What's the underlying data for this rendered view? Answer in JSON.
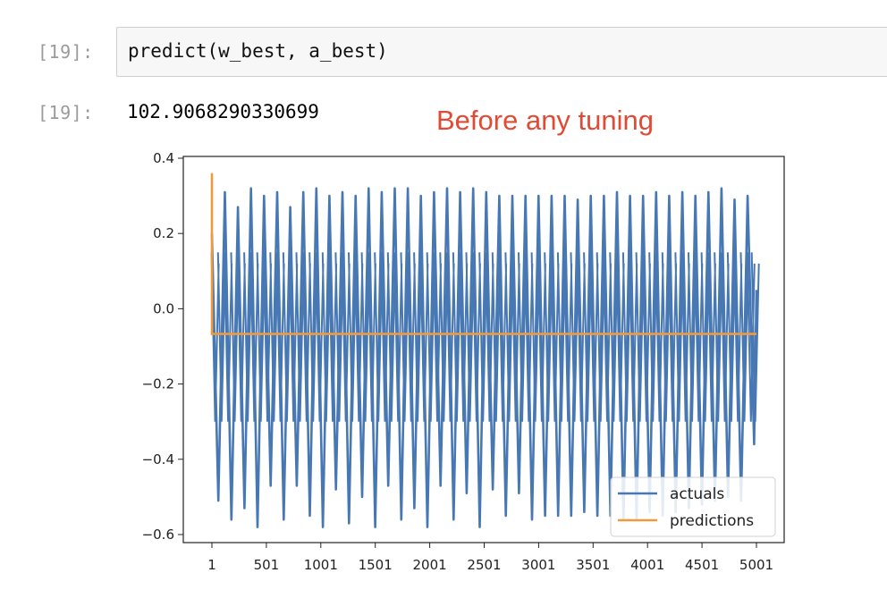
{
  "cells": {
    "input_prompt": "[19]:",
    "input_code": "predict(w_best, a_best)",
    "output_prompt": "[19]:",
    "output_value": "102.9068290330699"
  },
  "annotation": "Before any tuning",
  "colors": {
    "actuals": "#4778b3",
    "predictions": "#ef9a3d",
    "annotation": "#e24a33"
  },
  "chart_data": {
    "type": "line",
    "title": "",
    "xlabel": "",
    "ylabel": "",
    "xlim": [
      1,
      5001
    ],
    "ylim": [
      -0.62,
      0.4
    ],
    "x_ticks": [
      1,
      501,
      1001,
      1501,
      2001,
      2501,
      3001,
      3501,
      4001,
      4501,
      5001
    ],
    "x_tick_labels": [
      "1",
      "501",
      "1001",
      "1501",
      "2001",
      "2501",
      "3001",
      "3501",
      "4001",
      "4501",
      "5001"
    ],
    "y_ticks": [
      0.4,
      0.2,
      0.0,
      -0.2,
      -0.4,
      -0.6
    ],
    "y_tick_labels": [
      "0.4",
      "0.2",
      "0.0",
      "−0.2",
      "−0.4",
      "−0.6"
    ],
    "legend": {
      "position": "lower-right",
      "entries": [
        "actuals",
        "predictions"
      ]
    },
    "series": [
      {
        "name": "actuals",
        "note": "oscillating signal, approx range -0.58 to 0.32",
        "x": [
          1,
          60,
          120,
          180,
          240,
          300,
          360,
          420,
          480,
          540,
          600,
          660,
          720,
          780,
          840,
          900,
          960,
          1020,
          1080,
          1140,
          1200,
          1260,
          1320,
          1380,
          1440,
          1500,
          1560,
          1620,
          1680,
          1740,
          1800,
          1860,
          1920,
          1980,
          2040,
          2100,
          2160,
          2220,
          2280,
          2340,
          2400,
          2460,
          2520,
          2580,
          2640,
          2700,
          2760,
          2820,
          2880,
          2940,
          3000,
          3060,
          3120,
          3180,
          3240,
          3300,
          3360,
          3420,
          3480,
          3540,
          3600,
          3660,
          3720,
          3780,
          3840,
          3900,
          3960,
          4020,
          4080,
          4140,
          4200,
          4260,
          4320,
          4380,
          4440,
          4500,
          4560,
          4620,
          4680,
          4740,
          4800,
          4860,
          4920,
          4980,
          5001
        ],
        "values": [
          0.2,
          -0.51,
          0.31,
          -0.56,
          0.27,
          -0.53,
          0.32,
          -0.58,
          0.3,
          -0.47,
          0.31,
          -0.56,
          0.27,
          -0.47,
          0.31,
          -0.55,
          0.32,
          -0.58,
          0.3,
          -0.48,
          0.31,
          -0.57,
          0.3,
          -0.5,
          0.32,
          -0.58,
          0.31,
          -0.47,
          0.32,
          -0.56,
          0.32,
          -0.53,
          0.3,
          -0.58,
          0.31,
          -0.47,
          0.32,
          -0.56,
          0.31,
          -0.49,
          0.32,
          -0.58,
          0.31,
          -0.48,
          0.3,
          -0.55,
          0.3,
          -0.49,
          0.3,
          -0.56,
          0.3,
          -0.55,
          0.3,
          -0.55,
          0.3,
          -0.55,
          0.29,
          -0.54,
          0.3,
          -0.55,
          0.3,
          -0.55,
          0.31,
          -0.56,
          0.3,
          -0.56,
          0.3,
          -0.54,
          0.31,
          -0.55,
          0.3,
          -0.54,
          0.31,
          -0.53,
          0.3,
          -0.52,
          0.31,
          -0.51,
          0.32,
          -0.5,
          0.29,
          -0.51,
          0.3,
          -0.36,
          0.05
        ]
      },
      {
        "name": "predictions",
        "x": [
          1,
          1,
          10,
          5001
        ],
        "values": [
          0.36,
          -0.067,
          -0.067,
          -0.067
        ]
      }
    ]
  }
}
